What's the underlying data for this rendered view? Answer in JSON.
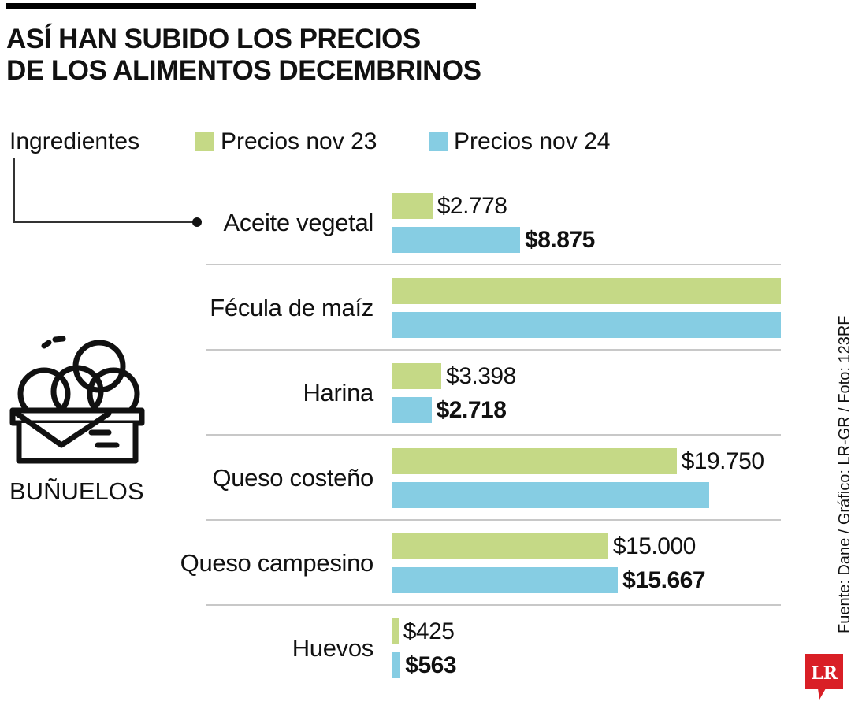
{
  "title_line1": "ASÍ HAN SUBIDO LOS PRECIOS",
  "title_line2": "DE LOS ALIMENTOS DECEMBRINOS",
  "legend": {
    "header": "Ingredientes",
    "series1": "Precios nov 23",
    "series2": "Precios nov 24"
  },
  "section_label": "BUÑUELOS",
  "source": "Fuente: Dane / Gráfico: LR-GR / Foto: 123RF",
  "logo_text": "LR",
  "colors": {
    "nov23": "#c5d986",
    "nov24": "#86cde3",
    "logo": "#d91f26"
  },
  "chart_data": {
    "type": "bar",
    "orientation": "horizontal",
    "categories": [
      "Aceite vegetal",
      "Fécula de maíz",
      "Harina",
      "Queso costeño",
      "Queso campesino",
      "Huevos"
    ],
    "series": [
      {
        "name": "Precios nov 23",
        "values": [
          2778,
          27000,
          3398,
          19750,
          15000,
          425
        ]
      },
      {
        "name": "Precios nov 24",
        "values": [
          8875,
          27000,
          2718,
          22000,
          15667,
          563
        ]
      }
    ],
    "labels": {
      "Precios nov 23": [
        "$2.778",
        "",
        "$3.398",
        "$19.750",
        "$15.000",
        "$425"
      ],
      "Precios nov 24": [
        "$8.875",
        "",
        "$2.718",
        "",
        "$15.667",
        "$563"
      ]
    },
    "xlim": [
      0,
      27000
    ]
  }
}
